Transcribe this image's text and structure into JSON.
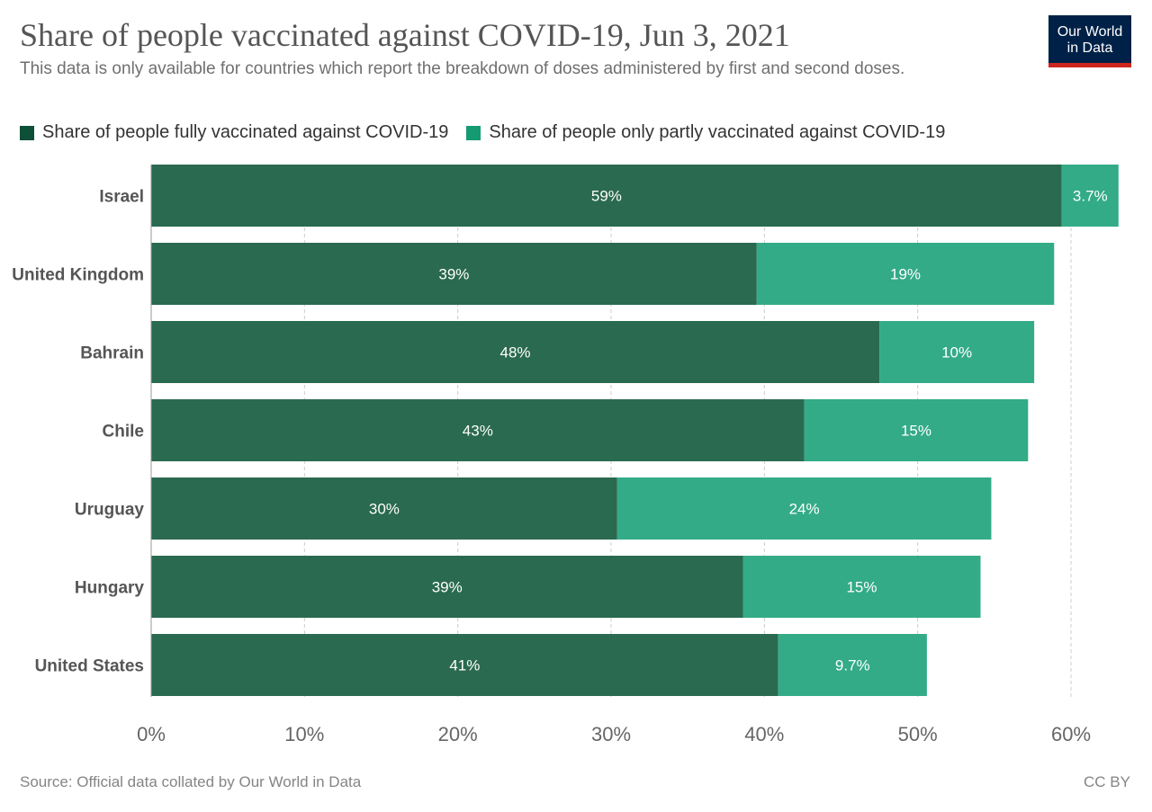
{
  "header": {
    "title": "Share of people vaccinated against COVID-19, Jun 3, 2021",
    "subtitle": "This data is only available for countries which report the breakdown of doses administered by first and second doses.",
    "logo_line1": "Our World",
    "logo_line2": "in Data"
  },
  "footer": {
    "source": "Source: Official data collated by Our World in Data",
    "license": "CC BY"
  },
  "colors": {
    "fully": "#2a6a50",
    "partly": "#33ab86",
    "fully_legend": "#0e4f38",
    "partly_legend": "#159b72",
    "grid": "#cccccc",
    "country_label": "#555555",
    "tick": "#666666",
    "logo_bg": "#002147",
    "logo_accent": "#ce261e"
  },
  "chart_data": {
    "type": "bar",
    "orientation": "horizontal",
    "stacked": true,
    "categories": [
      "Israel",
      "United Kingdom",
      "Bahrain",
      "Chile",
      "Uruguay",
      "Hungary",
      "United States"
    ],
    "series": [
      {
        "name": "Share of people fully vaccinated against COVID-19",
        "values": [
          59.4,
          39.5,
          47.5,
          42.6,
          30.4,
          38.6,
          40.9
        ],
        "labels": [
          "59%",
          "39%",
          "48%",
          "43%",
          "30%",
          "39%",
          "41%"
        ]
      },
      {
        "name": "Share of people only partly vaccinated against COVID-19",
        "values": [
          3.7,
          19.4,
          10.1,
          14.6,
          24.4,
          15.5,
          9.7
        ],
        "labels": [
          "3.7%",
          "19%",
          "10%",
          "15%",
          "24%",
          "15%",
          "9.7%"
        ]
      }
    ],
    "xlim": [
      0,
      60
    ],
    "xticks": [
      0,
      10,
      20,
      30,
      40,
      50,
      60
    ],
    "xtick_labels": [
      "0%",
      "10%",
      "20%",
      "30%",
      "40%",
      "50%",
      "60%"
    ],
    "grid": "vertical dashed",
    "legend_position": "top-left"
  }
}
